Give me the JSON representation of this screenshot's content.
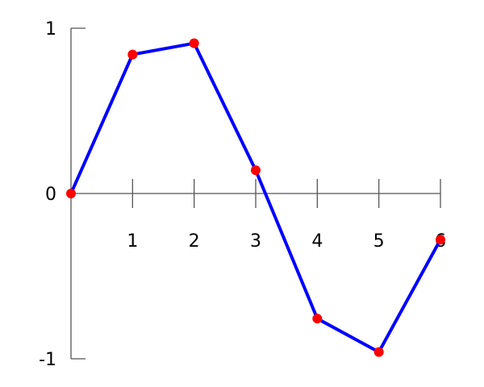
{
  "chart_data": {
    "type": "line",
    "title": "",
    "xlabel": "",
    "ylabel": "",
    "x": [
      0,
      1,
      2,
      3,
      4,
      5,
      6
    ],
    "series": [
      {
        "values": [
          0,
          0.841,
          0.909,
          0.141,
          -0.757,
          -0.959,
          -0.279
        ],
        "line_color": "#0000ff",
        "marker_color": "#ff0000"
      }
    ],
    "xlim": [
      0,
      6
    ],
    "ylim": [
      -1,
      1
    ],
    "x_ticks": [
      "1",
      "2",
      "3",
      "4",
      "5",
      "6"
    ],
    "y_ticks": [
      "1",
      "0",
      "-1"
    ],
    "grid": false,
    "axis_color": "#555555"
  }
}
